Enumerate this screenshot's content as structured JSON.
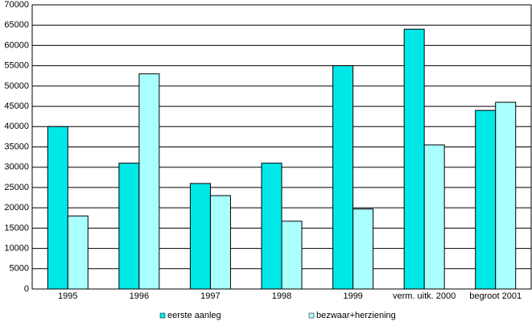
{
  "chart_data": {
    "type": "bar",
    "categories": [
      "1995",
      "1996",
      "1997",
      "1998",
      "1999",
      "verm. uitk. 2000",
      "begroot 2001"
    ],
    "series": [
      {
        "name": "eerste aanleg",
        "color": "#00e8e8",
        "values": [
          40000,
          31000,
          26000,
          31000,
          55000,
          64000,
          44000
        ]
      },
      {
        "name": "bezwaar+herziening",
        "color": "#aaffff",
        "values": [
          18000,
          53000,
          23000,
          16700,
          19700,
          35500,
          46000
        ]
      }
    ],
    "ylim": [
      0,
      70000
    ],
    "yticks": [
      0,
      5000,
      10000,
      15000,
      20000,
      25000,
      30000,
      35000,
      40000,
      45000,
      50000,
      55000,
      60000,
      65000,
      70000
    ],
    "grid": true,
    "legend": "bottom"
  }
}
